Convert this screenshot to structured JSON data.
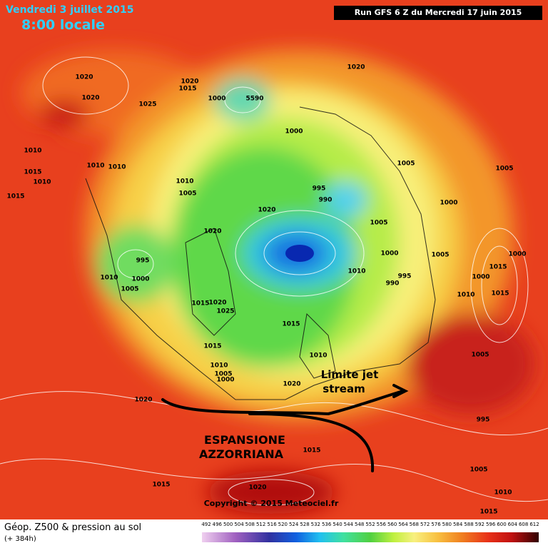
{
  "header": {
    "date": "Vendredi 3 juillet 2015",
    "time": "8:00 locale",
    "run": "Run GFS 6 Z du Mercredi 17 juin 2015"
  },
  "annotations": {
    "jet_line1": "Limite jet",
    "jet_line2": "stream",
    "anticyclone_line1": "ESPANSIONE",
    "anticyclone_line2": "AZZORRIANA"
  },
  "copyright": "Copyright © 2015 Meteociel.fr",
  "legend": {
    "title": "Géop. Z500 & pression au sol",
    "subtitle": "(+ 384h)",
    "scale": [
      "492",
      "496",
      "500",
      "504",
      "508",
      "512",
      "516",
      "520",
      "524",
      "528",
      "532",
      "536",
      "540",
      "544",
      "548",
      "552",
      "556",
      "560",
      "564",
      "568",
      "572",
      "576",
      "580",
      "584",
      "588",
      "592",
      "596",
      "600",
      "604",
      "608",
      "612"
    ]
  },
  "isobars": [
    "1020",
    "1020",
    "1025",
    "1020",
    "1015",
    "1000",
    "5590",
    "1020",
    "1000",
    "1005",
    "1005",
    "1010",
    "1015",
    "1010",
    "1010",
    "1010",
    "1015",
    "1010",
    "1005",
    "995",
    "990",
    "1020",
    "1000",
    "1005",
    "1020",
    "1000",
    "1005",
    "1000",
    "995",
    "1010",
    "995",
    "990",
    "1015",
    "1010",
    "1000",
    "1005",
    "1000",
    "1010",
    "1015",
    "1020",
    "1025",
    "1015",
    "1015",
    "1015",
    "1010",
    "1010",
    "1005",
    "1000",
    "1005",
    "1020",
    "1020",
    "995",
    "1015",
    "1005",
    "1015",
    "1020",
    "1010",
    "1015"
  ]
}
